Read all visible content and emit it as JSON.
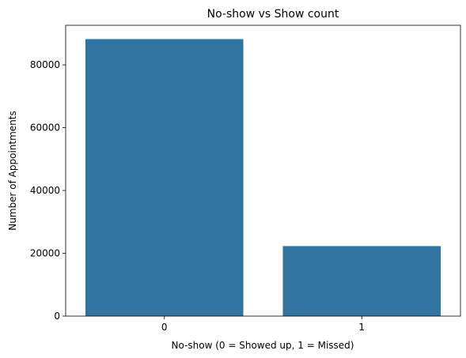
{
  "chart_data": {
    "type": "bar",
    "title": "No-show vs Show count",
    "xlabel": "No-show (0 = Showed up, 1 = Missed)",
    "ylabel": "Number of Appointments",
    "categories": [
      "0",
      "1"
    ],
    "values": [
      88200,
      22300
    ],
    "ylim": [
      0,
      92600
    ],
    "yticks": [
      0,
      20000,
      40000,
      60000,
      80000
    ],
    "ytick_labels": [
      "0",
      "20000",
      "40000",
      "60000",
      "80000"
    ],
    "grid": false,
    "bar_color": "#3274a1"
  }
}
